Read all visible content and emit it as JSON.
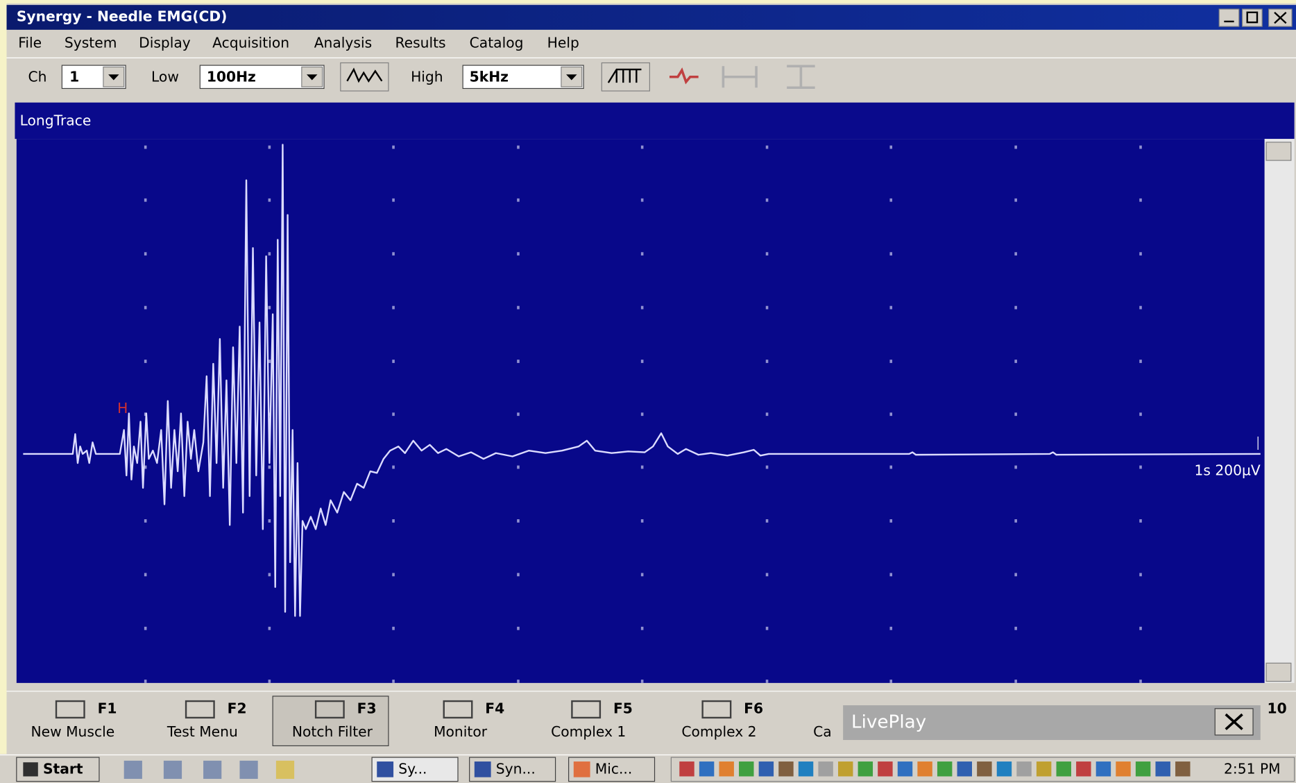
{
  "window": {
    "title": "Synergy - Needle EMG(CD)",
    "menu": [
      "File",
      "System",
      "Display",
      "Acquisition",
      "Analysis",
      "Results",
      "Catalog",
      "Help"
    ]
  },
  "toolbar": {
    "ch_label": "Ch",
    "ch_value": "1",
    "low_label": "Low",
    "low_value": "100Hz",
    "high_label": "High",
    "high_value": "5kHz"
  },
  "trace": {
    "title": "LongTrace",
    "cursor_label": "H",
    "scale_label": "1s 200µV"
  },
  "function_keys": [
    {
      "key": "F1",
      "label": "New Muscle"
    },
    {
      "key": "F2",
      "label": "Test Menu"
    },
    {
      "key": "F3",
      "label": "Notch Filter"
    },
    {
      "key": "F4",
      "label": "Monitor"
    },
    {
      "key": "F5",
      "label": "Complex 1"
    },
    {
      "key": "F6",
      "label": "Complex 2"
    },
    {
      "label": "Ca"
    }
  ],
  "partial_key": "10",
  "dialog": {
    "title": "LivePlay"
  },
  "taskbar": {
    "start": "Start",
    "tasks": [
      "Sy...",
      "Syn...",
      "Mic..."
    ],
    "clock": "2:51 PM"
  }
}
